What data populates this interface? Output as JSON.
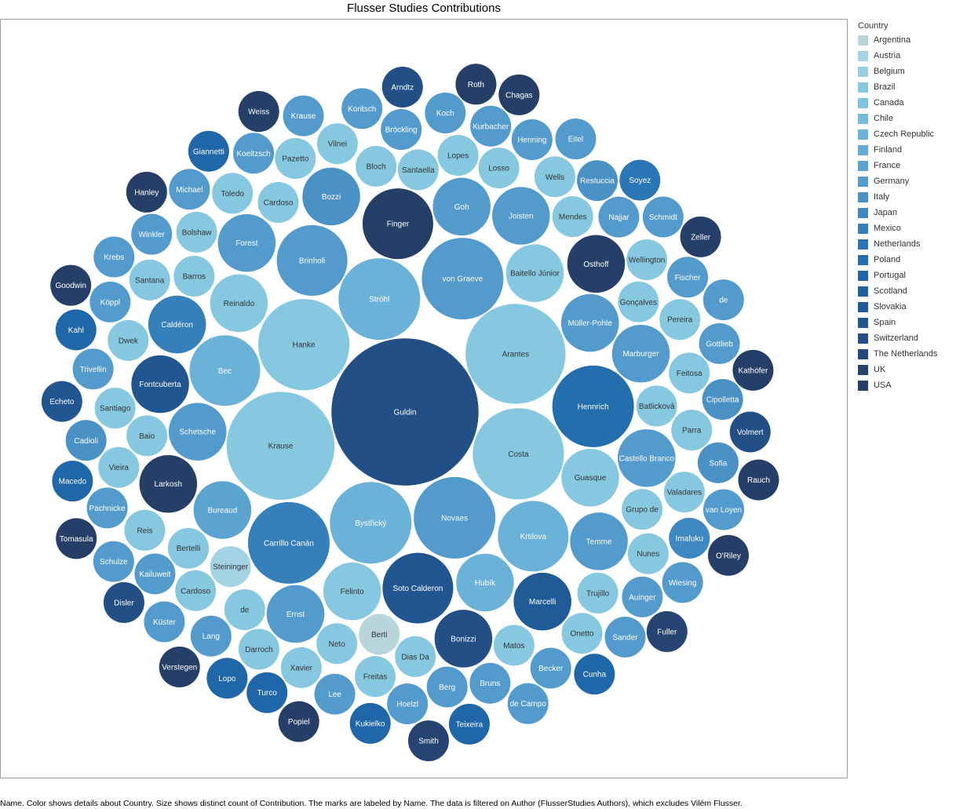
{
  "chart_data": {
    "type": "packed-bubble",
    "title": "Flusser Studies Contributions",
    "legend": {
      "title": "Country",
      "placement": "right",
      "entries": [
        {
          "name": "Argentina",
          "color": "#b9d5dc"
        },
        {
          "name": "Austria",
          "color": "#a4d3e4"
        },
        {
          "name": "Belgium",
          "color": "#97cfe6"
        },
        {
          "name": "Brazil",
          "color": "#87c8e1"
        },
        {
          "name": "Canada",
          "color": "#7ec3e0"
        },
        {
          "name": "Chile",
          "color": "#74bbdc"
        },
        {
          "name": "Czech Republic",
          "color": "#6bb2d9"
        },
        {
          "name": "Finland",
          "color": "#63abd6"
        },
        {
          "name": "France",
          "color": "#5ba3d1"
        },
        {
          "name": "Germany",
          "color": "#539bcd"
        },
        {
          "name": "Italy",
          "color": "#4a92c6"
        },
        {
          "name": "Japan",
          "color": "#3f88c1"
        },
        {
          "name": "Mexico",
          "color": "#357fbb"
        },
        {
          "name": "Netherlands",
          "color": "#2b76b5"
        },
        {
          "name": "Poland",
          "color": "#236ead"
        },
        {
          "name": "Portugal",
          "color": "#1f67a8"
        },
        {
          "name": "Scotland",
          "color": "#1f61a0"
        },
        {
          "name": "Slovakia",
          "color": "#205b98"
        },
        {
          "name": "Spain",
          "color": "#215690"
        },
        {
          "name": "Switzerland",
          "color": "#234f87"
        },
        {
          "name": "The Netherlands",
          "color": "#24497c"
        },
        {
          "name": "UK",
          "color": "#254472"
        },
        {
          "name": "USA",
          "color": "#263f69"
        }
      ]
    },
    "bubbles": [
      {
        "name": "Berti",
        "country": "Argentina",
        "size": 1
      },
      {
        "name": "Steininger",
        "country": "Austria",
        "size": 1
      },
      {
        "name": "Batlicková",
        "country": "Brazil",
        "size": 1
      },
      {
        "name": "Baitello Júnior",
        "country": "Brazil",
        "size": 2
      },
      {
        "name": "Barros",
        "country": "Brazil",
        "size": 1
      },
      {
        "name": "Baio",
        "country": "Brazil",
        "size": 1
      },
      {
        "name": "Cardoso",
        "country": "Brazil",
        "size": 1
      },
      {
        "name": "Guasque",
        "country": "Brazil",
        "size": 2
      },
      {
        "name": "Grupo de",
        "country": "Brazil",
        "size": 1
      },
      {
        "name": "Santaella",
        "country": "Brazil",
        "size": 1
      },
      {
        "name": "Gonçalves",
        "country": "Brazil",
        "size": 1
      },
      {
        "name": "Neto",
        "country": "Brazil",
        "size": 1
      },
      {
        "name": "Bertelli",
        "country": "Brazil",
        "size": 1
      },
      {
        "name": "Dias Da",
        "country": "Brazil",
        "size": 1
      },
      {
        "name": "Bloch",
        "country": "Brazil",
        "size": 1
      },
      {
        "name": "de",
        "country": "Brazil",
        "size": 1
      },
      {
        "name": "Arantes",
        "country": "Brazil",
        "size": 6
      },
      {
        "name": "Mendes",
        "country": "Brazil",
        "size": 1
      },
      {
        "name": "Trujillo",
        "country": "Brazil",
        "size": 1
      },
      {
        "name": "Matos",
        "country": "Brazil",
        "size": 1
      },
      {
        "name": "Losso",
        "country": "Brazil",
        "size": 1
      },
      {
        "name": "Lopes",
        "country": "Brazil",
        "size": 1
      },
      {
        "name": "Cardoso",
        "country": "Brazil",
        "size": 1
      },
      {
        "name": "Bolshaw",
        "country": "Brazil",
        "size": 1
      },
      {
        "name": "Dwek",
        "country": "Brazil",
        "size": 1
      },
      {
        "name": "Feitosa",
        "country": "Brazil",
        "size": 1
      },
      {
        "name": "Parra",
        "country": "Brazil",
        "size": 1
      },
      {
        "name": "Nunes",
        "country": "Brazil",
        "size": 1
      },
      {
        "name": "Freitas",
        "country": "Brazil",
        "size": 1
      },
      {
        "name": "Reis",
        "country": "Brazil",
        "size": 1
      },
      {
        "name": "Wellington",
        "country": "Brazil",
        "size": 1
      },
      {
        "name": "Felinto",
        "country": "Brazil",
        "size": 2
      },
      {
        "name": "Reinaldo",
        "country": "Brazil",
        "size": 2
      },
      {
        "name": "Costa",
        "country": "Brazil",
        "size": 5
      },
      {
        "name": "Pereira",
        "country": "Brazil",
        "size": 1
      },
      {
        "name": "Vieira",
        "country": "Brazil",
        "size": 1
      },
      {
        "name": "Valadares",
        "country": "Brazil",
        "size": 1
      },
      {
        "name": "Hanke",
        "country": "Brazil",
        "size": 5
      },
      {
        "name": "Santiago",
        "country": "Brazil",
        "size": 1
      },
      {
        "name": "Santana",
        "country": "Brazil",
        "size": 1
      },
      {
        "name": "Toledo",
        "country": "Brazil",
        "size": 1
      },
      {
        "name": "Krause",
        "country": "Brazil",
        "size": 7
      },
      {
        "name": "Xavier",
        "country": "Brazil",
        "size": 1
      },
      {
        "name": "Darroch",
        "country": "Brazil",
        "size": 1
      },
      {
        "name": "Pazetto",
        "country": "Brazil",
        "size": 1
      },
      {
        "name": "Wells",
        "country": "Brazil",
        "size": 1
      },
      {
        "name": "Vilnei",
        "country": "Brazil",
        "size": 1
      },
      {
        "name": "Onetto",
        "country": "Brazil",
        "size": 1
      },
      {
        "name": "Bystřický",
        "country": "Czech Republic",
        "size": 4
      },
      {
        "name": "Hubík",
        "country": "Czech Republic",
        "size": 2
      },
      {
        "name": "Krtilova",
        "country": "Czech Republic",
        "size": 3
      },
      {
        "name": "Bec",
        "country": "Czech Republic",
        "size": 3
      },
      {
        "name": "Ströhl",
        "country": "Czech Republic",
        "size": 4
      },
      {
        "name": "Müller-Pohle",
        "country": "Germany",
        "size": 2
      },
      {
        "name": "Najjar",
        "country": "Germany",
        "size": 1
      },
      {
        "name": "Bureaud",
        "country": "France",
        "size": 2
      },
      {
        "name": "Berg",
        "country": "Germany",
        "size": 1
      },
      {
        "name": "Novaes",
        "country": "Germany",
        "size": 4
      },
      {
        "name": "Bröckling",
        "country": "Germany",
        "size": 1
      },
      {
        "name": "Bruns",
        "country": "Germany",
        "size": 1
      },
      {
        "name": "Schetsche",
        "country": "Germany",
        "size": 2
      },
      {
        "name": "Goh",
        "country": "Germany",
        "size": 2
      },
      {
        "name": "Temme",
        "country": "Germany",
        "size": 2
      },
      {
        "name": "Kailuweit",
        "country": "Germany",
        "size": 1
      },
      {
        "name": "Forest",
        "country": "Germany",
        "size": 2
      },
      {
        "name": "von Graeve",
        "country": "Germany",
        "size": 4
      },
      {
        "name": "Auinger",
        "country": "Germany",
        "size": 1
      },
      {
        "name": "Lang",
        "country": "Germany",
        "size": 1
      },
      {
        "name": "Becker",
        "country": "Germany",
        "size": 1
      },
      {
        "name": "Lee",
        "country": "Germany",
        "size": 1
      },
      {
        "name": "Hoelzl",
        "country": "Germany",
        "size": 1
      },
      {
        "name": "Pachnicke",
        "country": "Germany",
        "size": 1
      },
      {
        "name": "Joisten",
        "country": "Germany",
        "size": 2
      },
      {
        "name": "Trivellin",
        "country": "Germany",
        "size": 1
      },
      {
        "name": "Imafuku",
        "country": "Japan",
        "size": 1
      },
      {
        "name": "Winkler",
        "country": "Germany",
        "size": 1
      },
      {
        "name": "Bozzi",
        "country": "Italy",
        "size": 2
      },
      {
        "name": "Koeltzsch",
        "country": "Germany",
        "size": 1
      },
      {
        "name": "Köppl",
        "country": "Germany",
        "size": 1
      },
      {
        "name": "Cipolletta",
        "country": "Italy",
        "size": 1
      },
      {
        "name": "Ernst",
        "country": "Germany",
        "size": 2
      },
      {
        "name": "Restuccia",
        "country": "Italy",
        "size": 1
      },
      {
        "name": "Fischer",
        "country": "Germany",
        "size": 1
      },
      {
        "name": "Sofia",
        "country": "Italy",
        "size": 1
      },
      {
        "name": "Kurbacher",
        "country": "Germany",
        "size": 1
      },
      {
        "name": "Brinholi",
        "country": "Germany",
        "size": 3
      },
      {
        "name": "Cadioli",
        "country": "Italy",
        "size": 1
      },
      {
        "name": "Gottlieb",
        "country": "Germany",
        "size": 1
      },
      {
        "name": "Marburger",
        "country": "Germany",
        "size": 2
      },
      {
        "name": "Henning",
        "country": "Germany",
        "size": 1
      },
      {
        "name": "Michael",
        "country": "Germany",
        "size": 1
      },
      {
        "name": "Koch",
        "country": "Germany",
        "size": 1
      },
      {
        "name": "Sander",
        "country": "Germany",
        "size": 1
      },
      {
        "name": "Küster",
        "country": "Germany",
        "size": 1
      },
      {
        "name": "Koritsch",
        "country": "Germany",
        "size": 1
      },
      {
        "name": "Castello Branco",
        "country": "Germany",
        "size": 2
      },
      {
        "name": "Caldéron",
        "country": "Mexico",
        "size": 2
      },
      {
        "name": "Carrillo Canán",
        "country": "Mexico",
        "size": 4
      },
      {
        "name": "Turco",
        "country": "Portugal",
        "size": 1
      },
      {
        "name": "Schulze",
        "country": "Germany",
        "size": 1
      },
      {
        "name": "Schmidt",
        "country": "Germany",
        "size": 1
      },
      {
        "name": "Krebs",
        "country": "Germany",
        "size": 1
      },
      {
        "name": "Krause",
        "country": "Germany",
        "size": 1
      },
      {
        "name": "Wiesing",
        "country": "Germany",
        "size": 1
      },
      {
        "name": "van Loyen",
        "country": "Germany",
        "size": 1
      },
      {
        "name": "Eitel",
        "country": "Germany",
        "size": 1
      },
      {
        "name": "de",
        "country": "Germany",
        "size": 1
      },
      {
        "name": "de Campo",
        "country": "Germany",
        "size": 1
      },
      {
        "name": "Kukielko",
        "country": "Portugal",
        "size": 1
      },
      {
        "name": "Cunha",
        "country": "Portugal",
        "size": 1
      },
      {
        "name": "Lopo",
        "country": "Portugal",
        "size": 1
      },
      {
        "name": "Macedo",
        "country": "Portugal",
        "size": 1
      },
      {
        "name": "Teixeira",
        "country": "Portugal",
        "size": 1
      },
      {
        "name": "Echeto",
        "country": "Spain",
        "size": 1
      },
      {
        "name": "Kahl",
        "country": "Portugal",
        "size": 1
      },
      {
        "name": "Marcelli",
        "country": "Slovakia",
        "size": 2
      },
      {
        "name": "Soyez",
        "country": "Netherlands",
        "size": 1
      },
      {
        "name": "Giannetti",
        "country": "Portugal",
        "size": 1
      },
      {
        "name": "Hennrich",
        "country": "Poland",
        "size": 4
      },
      {
        "name": "Soto Calderon",
        "country": "Spain",
        "size": 3
      },
      {
        "name": "Guldin",
        "country": "Switzerland",
        "size": 13
      },
      {
        "name": "Fontcuberta",
        "country": "Spain",
        "size": 2
      },
      {
        "name": "Volmert",
        "country": "Switzerland",
        "size": 1
      },
      {
        "name": "Bonizzi",
        "country": "Switzerland",
        "size": 2
      },
      {
        "name": "Arndtz",
        "country": "Switzerland",
        "size": 1
      },
      {
        "name": "Disler",
        "country": "Switzerland",
        "size": 1
      },
      {
        "name": "Kathöfer",
        "country": "USA",
        "size": 1
      },
      {
        "name": "Zeller",
        "country": "USA",
        "size": 1
      },
      {
        "name": "Larkosh",
        "country": "USA",
        "size": 2
      },
      {
        "name": "Finger",
        "country": "USA",
        "size": 3
      },
      {
        "name": "Osthoff",
        "country": "USA",
        "size": 2
      },
      {
        "name": "Popiel",
        "country": "USA",
        "size": 1
      },
      {
        "name": "Fuller",
        "country": "UK",
        "size": 1
      },
      {
        "name": "Hanley",
        "country": "USA",
        "size": 1
      },
      {
        "name": "Verstegen",
        "country": "USA",
        "size": 1
      },
      {
        "name": "Smith",
        "country": "UK",
        "size": 1
      },
      {
        "name": "Tomasula",
        "country": "USA",
        "size": 1
      },
      {
        "name": "Weiss",
        "country": "USA",
        "size": 1
      },
      {
        "name": "O'Riley",
        "country": "USA",
        "size": 1
      },
      {
        "name": "Goodwin",
        "country": "USA",
        "size": 1
      },
      {
        "name": "Roth",
        "country": "USA",
        "size": 1
      },
      {
        "name": "Chagas",
        "country": "USA",
        "size": 1
      },
      {
        "name": "Rauch",
        "country": "USA",
        "size": 1
      }
    ]
  },
  "caption": "Name.  Color shows details about Country.  Size shows distinct count of Contribution.  The marks are labeled by Name. The data is filtered on Author (FlusserStudies Authors), which excludes Vilém Flusser."
}
